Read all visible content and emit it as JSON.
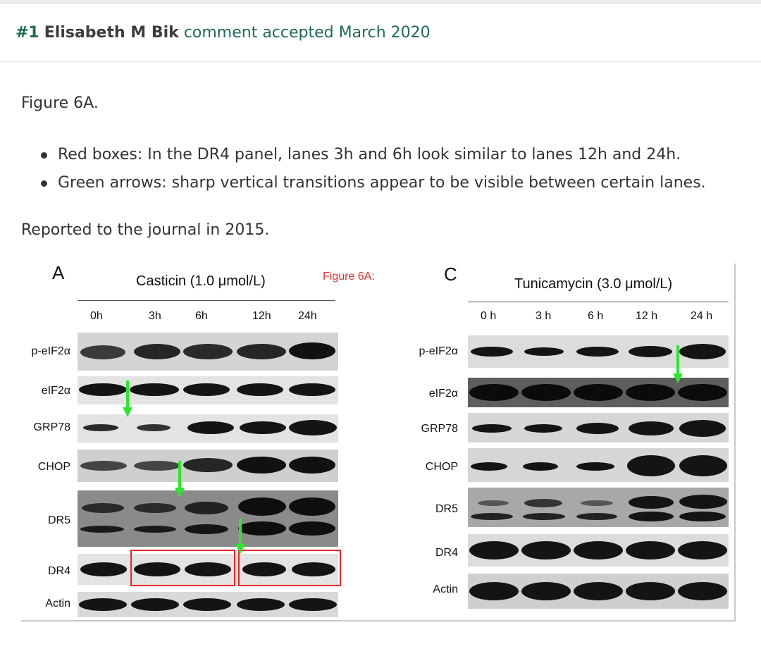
{
  "header": {
    "number": "#1",
    "author": "Elisabeth M Bik",
    "status_text": "comment accepted March 2020"
  },
  "comment": {
    "figure_ref": "Figure 6A.",
    "bullets": [
      "Red boxes: In the DR4 panel, lanes 3h and 6h look similar to lanes 12h and 24h.",
      "Green arrows: sharp vertical transitions appear to be visible between certain lanes."
    ],
    "reported": "Reported to the journal in 2015."
  },
  "figure": {
    "annotation_label": "Figure 6A:",
    "panel_a": {
      "letter": "A",
      "title": "Casticin (1.0 μmol/L)",
      "lanes": [
        "0h",
        "3h",
        "6h",
        "12h",
        "24h"
      ],
      "rows": [
        "p-eIF2α",
        "eIF2α",
        "GRP78",
        "CHOP",
        "DR5",
        "DR4",
        "Actin"
      ]
    },
    "panel_c": {
      "letter": "C",
      "title": "Tunicamycin (3.0 μmol/L)",
      "lanes": [
        "0 h",
        "3 h",
        "6 h",
        "12 h",
        "24 h"
      ],
      "rows": [
        "p-eIF2α",
        "eIF2α",
        "GRP78",
        "CHOP",
        "DR5",
        "DR4",
        "Actin"
      ]
    },
    "colors": {
      "annotation_box": "#e8262a",
      "annotation_arrow": "#2ee52e",
      "brand": "#1f6a57"
    }
  }
}
